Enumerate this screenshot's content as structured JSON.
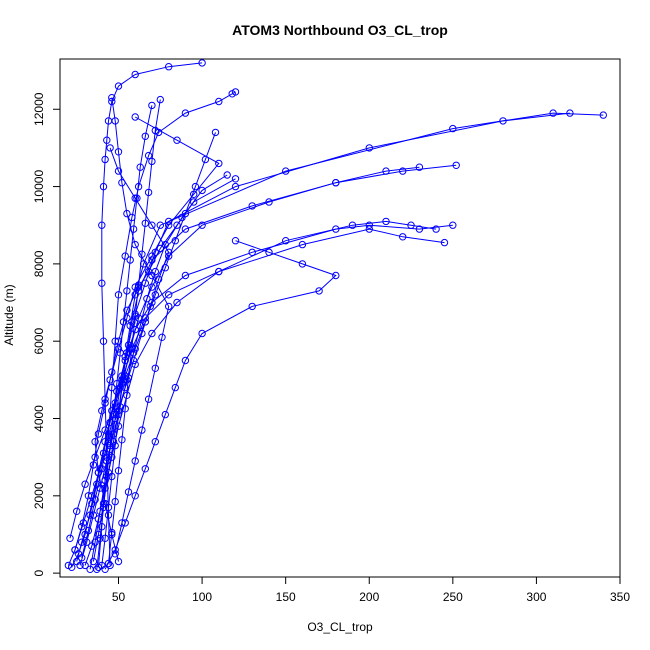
{
  "chart_data": {
    "type": "line",
    "title": "ATOM3 Northbound O3_CL_trop",
    "xlabel": "O3_CL_trop",
    "ylabel": "Altitude (m)",
    "xlim": [
      15,
      350
    ],
    "ylim": [
      -100,
      13300
    ],
    "x_ticks": [
      50,
      100,
      150,
      200,
      250,
      300,
      350
    ],
    "y_ticks": [
      0,
      2000,
      4000,
      6000,
      8000,
      10000,
      12000
    ],
    "grid": false,
    "markers": "open-circle",
    "series_color": "#0000ff",
    "series": [
      {
        "x": [
          20,
          24,
          28,
          32,
          35,
          38,
          42,
          46,
          50,
          55,
          62,
          68,
          75,
          85,
          95,
          120
        ],
        "y": [
          200,
          600,
          1200,
          2000,
          2800,
          3600,
          4400,
          5200,
          6000,
          6800,
          7400,
          7800,
          8400,
          9000,
          9600,
          10200
        ]
      },
      {
        "x": [
          22,
          26,
          30,
          34,
          38,
          42,
          46,
          52,
          58,
          66,
          80,
          110,
          160,
          200,
          220,
          245
        ],
        "y": [
          150,
          500,
          1000,
          1800,
          2600,
          3400,
          4200,
          5000,
          5800,
          6600,
          7200,
          7800,
          8500,
          8900,
          8700,
          8550
        ]
      },
      {
        "x": [
          25,
          28,
          33,
          37,
          41,
          45,
          49,
          54,
          60,
          70,
          90,
          130,
          180,
          200,
          230,
          250
        ],
        "y": [
          300,
          800,
          1500,
          2300,
          3100,
          3900,
          4700,
          5500,
          6300,
          7000,
          7700,
          8300,
          8900,
          9000,
          8900,
          9000
        ]
      },
      {
        "x": [
          30,
          34,
          38,
          42,
          46,
          50,
          55,
          60,
          70,
          85,
          110,
          150,
          190,
          210,
          225,
          240
        ],
        "y": [
          200,
          700,
          1400,
          2200,
          3000,
          3800,
          4600,
          5400,
          6200,
          7000,
          7800,
          8600,
          9000,
          9100,
          9000,
          8900
        ]
      },
      {
        "x": [
          35,
          38,
          41,
          44,
          47,
          50,
          53,
          57,
          62,
          70,
          80,
          100,
          140,
          180,
          210,
          230
        ],
        "y": [
          300,
          1000,
          1800,
          2600,
          3400,
          4200,
          5000,
          5800,
          6600,
          7400,
          8200,
          9000,
          9600,
          10100,
          10400,
          10500
        ]
      },
      {
        "x": [
          40,
          42,
          44,
          46,
          48,
          50,
          52,
          55,
          58,
          62,
          70,
          90,
          130,
          180,
          220,
          252
        ],
        "y": [
          200,
          900,
          1700,
          2500,
          3300,
          4100,
          4900,
          5700,
          6500,
          7300,
          8100,
          8900,
          9500,
          10100,
          10400,
          10550
        ]
      },
      {
        "x": [
          28,
          32,
          36,
          40,
          44,
          48,
          52,
          56,
          60,
          66,
          72,
          80,
          120,
          200,
          280,
          320
        ],
        "y": [
          400,
          1100,
          1900,
          2700,
          3500,
          4300,
          5100,
          5900,
          6700,
          7500,
          8300,
          9100,
          10000,
          11000,
          11700,
          11900
        ]
      },
      {
        "x": [
          33,
          36,
          39,
          42,
          45,
          48,
          51,
          54,
          57,
          60,
          65,
          75,
          150,
          250,
          310,
          340
        ],
        "y": [
          100,
          800,
          1600,
          2400,
          3200,
          4000,
          4800,
          5600,
          6400,
          7200,
          8000,
          9000,
          10400,
          11500,
          11900,
          11850
        ]
      },
      {
        "x": [
          45,
          44,
          43,
          42,
          41,
          40,
          40,
          41,
          42,
          43,
          44,
          46,
          50,
          60,
          80,
          100
        ],
        "y": [
          200,
          1500,
          3000,
          4500,
          6000,
          7500,
          9000,
          10000,
          10700,
          11200,
          11700,
          12200,
          12600,
          12900,
          13100,
          13200
        ]
      },
      {
        "x": [
          38,
          40,
          42,
          44,
          46,
          48,
          50,
          54,
          58,
          62,
          68,
          74,
          90,
          110,
          118,
          120
        ],
        "y": [
          150,
          1200,
          2400,
          3600,
          4800,
          6000,
          7200,
          8200,
          9200,
          10000,
          10800,
          11400,
          11900,
          12200,
          12400,
          12450
        ]
      },
      {
        "x": [
          42,
          48,
          54,
          60,
          66,
          72,
          78,
          84,
          90,
          100,
          130,
          170,
          180,
          160,
          140,
          120
        ],
        "y": [
          100,
          600,
          1300,
          2000,
          2700,
          3400,
          4100,
          4800,
          5500,
          6200,
          6900,
          7300,
          7700,
          8000,
          8300,
          8600
        ]
      },
      {
        "x": [
          24,
          29,
          34,
          39,
          44,
          49,
          54,
          59,
          64,
          69,
          74,
          80,
          70,
          60,
          50,
          45
        ],
        "y": [
          600,
          1300,
          2000,
          2700,
          3400,
          4100,
          4800,
          5500,
          6200,
          6900,
          7600,
          8300,
          9000,
          9700,
          10400,
          11000
        ]
      },
      {
        "x": [
          37,
          39,
          41,
          43,
          45,
          47,
          49,
          51,
          53,
          55,
          57,
          59,
          61,
          63,
          66,
          70
        ],
        "y": [
          100,
          900,
          1700,
          2500,
          3300,
          4100,
          4900,
          5700,
          6500,
          7300,
          8100,
          8900,
          9700,
          10500,
          11300,
          12100
        ]
      },
      {
        "x": [
          50,
          46,
          42,
          38,
          36,
          40,
          45,
          50,
          55,
          60,
          70,
          80,
          95,
          110,
          85,
          60
        ],
        "y": [
          300,
          1000,
          1800,
          2600,
          3400,
          4200,
          5000,
          5800,
          6600,
          7400,
          8200,
          9000,
          9800,
          10600,
          11200,
          11800
        ]
      },
      {
        "x": [
          27,
          31,
          35,
          39,
          43,
          47,
          51,
          55,
          59,
          63,
          67,
          72,
          78,
          88,
          100,
          115
        ],
        "y": [
          200,
          800,
          1500,
          2200,
          2900,
          3600,
          4300,
          5000,
          5700,
          6400,
          7100,
          7800,
          8500,
          9200,
          9900,
          10300
        ]
      },
      {
        "x": [
          48,
          52,
          56,
          60,
          64,
          68,
          72,
          76,
          80,
          70,
          60,
          55,
          52,
          50,
          48,
          46
        ],
        "y": [
          500,
          1300,
          2100,
          2900,
          3700,
          4500,
          5300,
          6100,
          6900,
          7700,
          8500,
          9300,
          10100,
          10900,
          11700,
          12300
        ]
      },
      {
        "x": [
          21,
          25,
          30,
          36,
          42,
          48,
          54,
          60,
          66,
          72,
          78,
          84,
          90,
          96,
          102,
          108
        ],
        "y": [
          900,
          1600,
          2300,
          3000,
          3700,
          4400,
          5100,
          5800,
          6500,
          7200,
          7900,
          8600,
          9300,
          10000,
          10700,
          11400
        ]
      },
      {
        "x": [
          44,
          46,
          48,
          50,
          52,
          54,
          56,
          58,
          60,
          62,
          64,
          66,
          68,
          70,
          72,
          75
        ],
        "y": [
          250,
          1050,
          1850,
          2650,
          3450,
          4250,
          5050,
          5850,
          6650,
          7450,
          8250,
          9050,
          9850,
          10650,
          11450,
          12250
        ]
      }
    ]
  }
}
